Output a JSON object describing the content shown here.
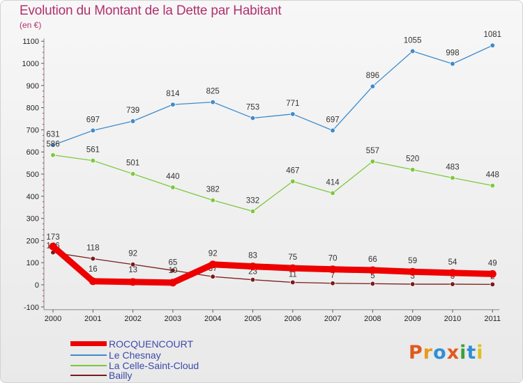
{
  "chart_data": {
    "type": "line",
    "title": "Evolution du Montant de la Dette par Habitant",
    "subtitle": "(en €)",
    "categories": [
      "2000",
      "2001",
      "2002",
      "2003",
      "2004",
      "2005",
      "2006",
      "2007",
      "2008",
      "2009",
      "2010",
      "2011"
    ],
    "ylim": [
      -100,
      1100
    ],
    "yticks": [
      "-100",
      "0",
      "100",
      "200",
      "300",
      "400",
      "500",
      "600",
      "700",
      "800",
      "900",
      "1000",
      "1100"
    ],
    "grid": false,
    "legend_position": "bottom-left",
    "series": [
      {
        "name": "ROCQUENCOURT",
        "color": "#ee0000",
        "values": [
          173,
          16,
          13,
          10,
          92,
          83,
          75,
          70,
          66,
          59,
          54,
          49
        ]
      },
      {
        "name": "Le Chesnay",
        "color": "#3e8bcb",
        "values": [
          631,
          697,
          739,
          814,
          825,
          753,
          771,
          697,
          896,
          1055,
          998,
          1081
        ]
      },
      {
        "name": "La Celle-Saint-Cloud",
        "color": "#7dc83c",
        "values": [
          586,
          561,
          501,
          440,
          382,
          332,
          467,
          414,
          557,
          520,
          483,
          448
        ]
      },
      {
        "name": "Bailly",
        "color": "#7a1a1a",
        "values": [
          146,
          118,
          92,
          65,
          37,
          23,
          11,
          7,
          5,
          3,
          3,
          2
        ]
      }
    ]
  },
  "branding": {
    "logo_text": "Proxiti",
    "logo_colors": [
      "#e05a1c",
      "#e89a1c",
      "#2f8fd6",
      "#e05a1c",
      "#3aa13a",
      "#2f8fd6",
      "#e0c01c"
    ]
  }
}
